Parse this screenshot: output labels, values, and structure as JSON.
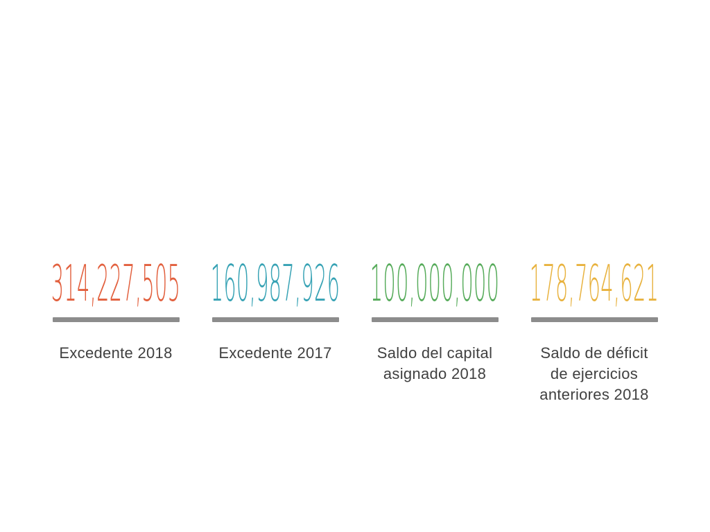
{
  "chart_data": {
    "type": "table",
    "title": "",
    "categories": [
      "Excedente 2018",
      "Excedente 2017",
      "Saldo del capital asignado 2018",
      "Saldo de déficit de ejercicios anteriores 2018"
    ],
    "values": [
      314227505,
      160987926,
      100000000,
      178764621
    ],
    "layout": "4 KPI stat cards in a horizontal row, white background, no axes, no legend"
  },
  "cards": [
    {
      "value": "314,227,505",
      "label": "Excedente 2018",
      "color": "#E2603E"
    },
    {
      "value": "160,987,926",
      "label": "Excedente 2017",
      "color": "#36A2B4"
    },
    {
      "value": "100,000,000",
      "label": "Saldo del capital\nasignado 2018",
      "color": "#56AB5A"
    },
    {
      "value": "178,764,621",
      "label": "Saldo de déficit\nde ejercicios\nanteriores 2018",
      "color": "#E8B23E"
    }
  ],
  "colors": {
    "underline_bar": "#8C8C8C",
    "label_text": "#404040",
    "background": "#FFFFFF"
  }
}
